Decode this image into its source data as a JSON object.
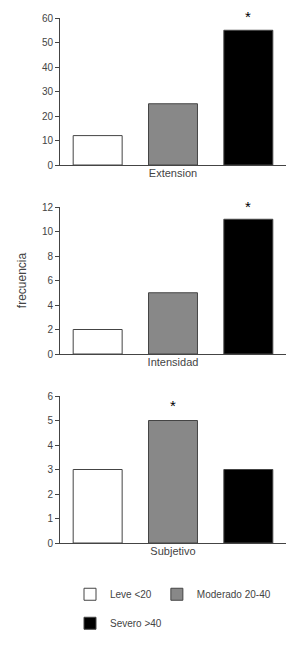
{
  "chart_data": [
    {
      "type": "bar",
      "xlabel": "Extension",
      "categories": [
        "Leve <20",
        "Moderado 20-40",
        "Severo >40"
      ],
      "values": [
        12,
        25,
        55
      ],
      "colors": [
        "#ffffff",
        "#888888",
        "#000000"
      ],
      "ylim": [
        0,
        60
      ],
      "yticks": [
        0,
        10,
        20,
        30,
        40,
        50,
        60
      ],
      "annotations": [
        {
          "text": "*",
          "x": 2,
          "y": 56.5
        }
      ],
      "tick_labels": "y",
      "grid": false,
      "legend": "bottom"
    },
    {
      "type": "bar",
      "xlabel": "Intensidad",
      "ylabel": "frecuencia",
      "categories": [
        "Leve <20",
        "Moderado 20-40",
        "Severo >40"
      ],
      "values": [
        2,
        5,
        11
      ],
      "colors": [
        "#ffffff",
        "#888888",
        "#000000"
      ],
      "ylim": [
        0,
        12
      ],
      "yticks": [
        0,
        2,
        4,
        6,
        8,
        10,
        12
      ],
      "annotations": [
        {
          "text": "*",
          "x": 2,
          "y": 11.2
        }
      ],
      "tick_labels": "y",
      "grid": false
    },
    {
      "type": "bar",
      "xlabel": "Subjetivo",
      "categories": [
        "Leve <20",
        "Moderado 20-40",
        "Severo >40"
      ],
      "values": [
        3,
        5,
        3
      ],
      "colors": [
        "#ffffff",
        "#888888",
        "#000000"
      ],
      "ylim": [
        0,
        6
      ],
      "yticks": [
        0,
        1,
        2,
        3,
        4,
        5,
        6
      ],
      "annotations": [
        {
          "text": "*",
          "x": 1,
          "y": 5.2
        }
      ],
      "tick_labels": "y",
      "grid": false
    }
  ]
}
